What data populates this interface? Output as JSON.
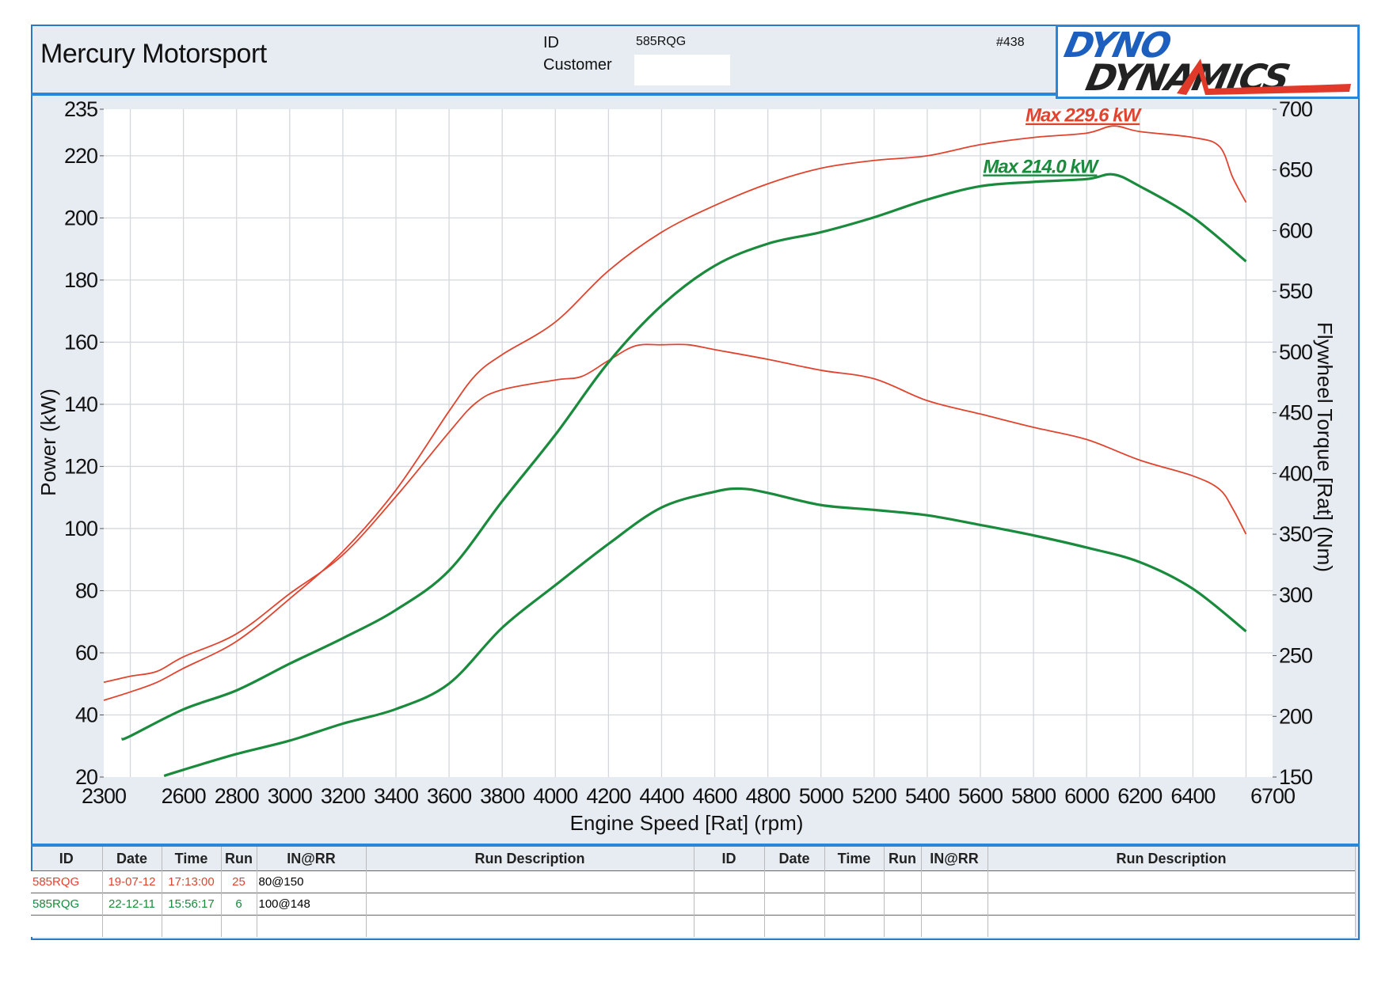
{
  "header": {
    "company": "Mercury Motorsport",
    "id_label": "ID",
    "id_value": "585RQG",
    "customer_label": "Customer",
    "customer_value": "",
    "report_number": "#438",
    "logo_line1": "DYNO",
    "logo_line2": "DYNAMICS"
  },
  "colors": {
    "run1": "#e0442e",
    "run2": "#1a8a3c",
    "accent": "#2a86d8",
    "panel_bg": "#e7ecf2"
  },
  "chart_data": {
    "type": "line",
    "xlabel": "Engine Speed [Rat] (rpm)",
    "ylabel": "Power (kW)",
    "y2label": "Flywheel Torque [Rat] (Nm)",
    "xlim": [
      2300,
      6700
    ],
    "ylim": [
      20,
      235
    ],
    "y2lim": [
      150,
      700
    ],
    "grid": true,
    "x_ticks": [
      "2300",
      "2600",
      "2800",
      "3000",
      "3200",
      "3400",
      "3600",
      "3800",
      "4000",
      "4200",
      "4400",
      "4600",
      "4800",
      "5000",
      "5200",
      "5400",
      "5600",
      "5800",
      "6000",
      "6200",
      "6400",
      "6700"
    ],
    "y_ticks": [
      "20",
      "40",
      "60",
      "80",
      "100",
      "120",
      "140",
      "160",
      "180",
      "200",
      "220",
      "235"
    ],
    "y2_ticks": [
      "150",
      "200",
      "250",
      "300",
      "350",
      "400",
      "450",
      "500",
      "550",
      "600",
      "650",
      "700"
    ],
    "annotations": [
      {
        "text": "Max 229.6 kW",
        "color": "#e0442e",
        "rpm": 5770,
        "kw": 231
      },
      {
        "text": "Max 214.0 kW",
        "color": "#1a8a3c",
        "rpm": 5610,
        "kw": 214.5
      }
    ],
    "series": [
      {
        "run": "25",
        "quantity": "power",
        "axis": "left",
        "color": "#e0442e",
        "x": [
          2300,
          2400,
          2500,
          2600,
          2800,
          3000,
          3200,
          3400,
          3600,
          3700,
          3800,
          4000,
          4200,
          4400,
          4600,
          4800,
          5000,
          5200,
          5400,
          5600,
          5800,
          6000,
          6100,
          6200,
          6400,
          6500,
          6550,
          6600
        ],
        "y": [
          44.7,
          47.4,
          50.5,
          55,
          63.7,
          77.4,
          92.6,
          112.4,
          137.8,
          149.4,
          156,
          166.5,
          183,
          195.4,
          204,
          211,
          216,
          218.5,
          220,
          223.6,
          225.9,
          227.3,
          229.6,
          227.8,
          225.9,
          223,
          213,
          205
        ]
      },
      {
        "run": "25",
        "quantity": "torque",
        "axis": "right",
        "color": "#e0442e",
        "x": [
          2300,
          2400,
          2500,
          2600,
          2800,
          3000,
          3200,
          3400,
          3600,
          3700,
          3800,
          4000,
          4100,
          4200,
          4300,
          4400,
          4500,
          4600,
          4800,
          5000,
          5200,
          5400,
          5600,
          5800,
          6000,
          6200,
          6400,
          6500,
          6550,
          6600
        ],
        "y": [
          228,
          233,
          237,
          249,
          268,
          301,
          333,
          381,
          434,
          458,
          469,
          477,
          480,
          493,
          505,
          506,
          506,
          502,
          494,
          485,
          478,
          460,
          449,
          438,
          428,
          411,
          398,
          387,
          371,
          350
        ]
      },
      {
        "run": "6",
        "quantity": "power",
        "axis": "left",
        "color": "#1a8a3c",
        "x": [
          2367,
          2400,
          2600,
          2800,
          3000,
          3200,
          3400,
          3600,
          3800,
          4000,
          4200,
          4400,
          4600,
          4800,
          5000,
          5200,
          5400,
          5600,
          5800,
          6000,
          6100,
          6200,
          6400,
          6600
        ],
        "y": [
          32.2,
          33.2,
          41.8,
          47.9,
          56.5,
          64.7,
          73.8,
          86.5,
          108.8,
          130.2,
          153.5,
          171.8,
          184.6,
          191.7,
          195.4,
          200.2,
          205.9,
          210.2,
          211.6,
          212.5,
          214,
          210.2,
          200.2,
          186
        ]
      },
      {
        "run": "6",
        "quantity": "torque",
        "axis": "right",
        "color": "#1a8a3c",
        "x": [
          2527,
          2600,
          2800,
          3000,
          3200,
          3400,
          3600,
          3800,
          4000,
          4200,
          4400,
          4600,
          4700,
          4800,
          5000,
          5200,
          5400,
          5600,
          5800,
          6000,
          6200,
          6400,
          6600
        ],
        "y": [
          151,
          156,
          169,
          180,
          194,
          206,
          227,
          273,
          308,
          342,
          372,
          385,
          387.5,
          384,
          374,
          370,
          365.6,
          357.6,
          349,
          339,
          327,
          305,
          270
        ]
      }
    ]
  },
  "table": {
    "headers": [
      "ID",
      "Date",
      "Time",
      "Run",
      "IN@RR",
      "Run Description",
      "ID",
      "Date",
      "Time",
      "Run",
      "IN@RR",
      "Run Description"
    ],
    "rows": [
      {
        "id": "585RQG",
        "date": "19-07-12",
        "time": "17:13:00",
        "run": "25",
        "inrr": "80@150",
        "desc": ""
      },
      {
        "id": "585RQG",
        "date": "22-12-11",
        "time": "15:56:17",
        "run": "6",
        "inrr": "100@148",
        "desc": ""
      }
    ]
  }
}
